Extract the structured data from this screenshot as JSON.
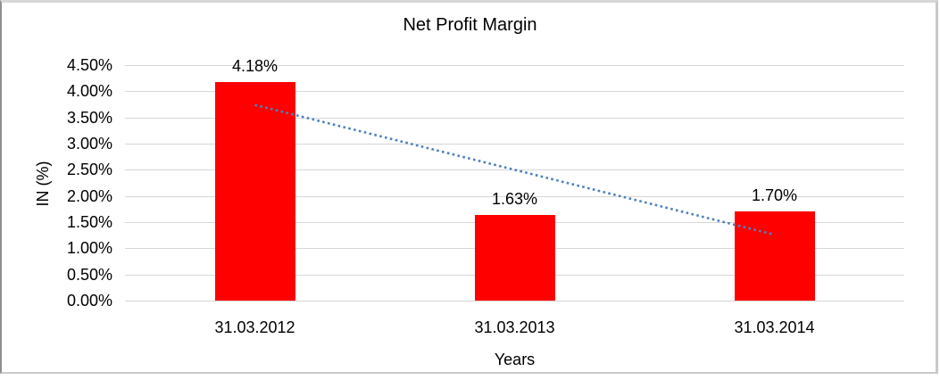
{
  "chart_data": {
    "type": "bar",
    "title": "Net Profit Margin",
    "xlabel": "Years",
    "ylabel": "IN (%)",
    "categories": [
      "31.03.2012",
      "31.03.2013",
      "31.03.2014"
    ],
    "values": [
      4.18,
      1.63,
      1.7
    ],
    "value_labels": [
      "4.18%",
      "1.63%",
      "1.70%"
    ],
    "y_ticks": [
      "4.50%",
      "4.00%",
      "3.50%",
      "3.00%",
      "2.50%",
      "2.00%",
      "1.50%",
      "1.00%",
      "0.50%",
      "0.00%"
    ],
    "y_tick_values": [
      4.5,
      4.0,
      3.5,
      3.0,
      2.5,
      2.0,
      1.5,
      1.0,
      0.5,
      0.0
    ],
    "ylim": [
      0,
      4.5
    ],
    "grid": true,
    "legend": "none",
    "bar_color": "#ff0000",
    "gridline_color": "#d6d6d6",
    "text_color": "#000000",
    "trendline": {
      "type": "linear",
      "style": "dotted",
      "color": "#4f81bd",
      "start_value": 3.74,
      "end_value": 1.26
    }
  }
}
